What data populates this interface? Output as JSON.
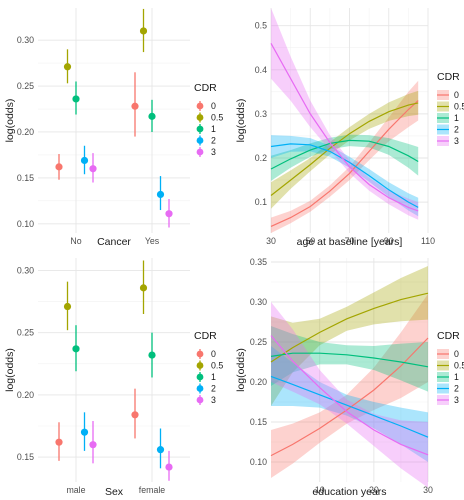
{
  "chart_data": [
    {
      "type": "scatter",
      "subtype": "point-range",
      "xlabel": "Cancer",
      "ylabel": "log(odds)",
      "categories": [
        "No",
        "Yes"
      ],
      "ylim": [
        0.09,
        0.335
      ],
      "yticks": [
        "0.10",
        "0.15",
        "0.20",
        "0.25",
        "0.30"
      ],
      "yticks_values": [
        0.1,
        0.15,
        0.2,
        0.25,
        0.3
      ],
      "legend_title": "CDR",
      "legend_position": "right",
      "grid": true,
      "series": [
        {
          "name": "0",
          "color": "#F8766D",
          "values": [
            0.162,
            0.228
          ],
          "lower": [
            0.148,
            0.195
          ],
          "upper": [
            0.176,
            0.265
          ]
        },
        {
          "name": "0.5",
          "color": "#A3A500",
          "values": [
            0.271,
            0.31
          ],
          "lower": [
            0.253,
            0.287
          ],
          "upper": [
            0.29,
            0.334
          ]
        },
        {
          "name": "1",
          "color": "#00BF7D",
          "values": [
            0.236,
            0.217
          ],
          "lower": [
            0.219,
            0.2
          ],
          "upper": [
            0.255,
            0.235
          ]
        },
        {
          "name": "2",
          "color": "#00B0F6",
          "values": [
            0.169,
            0.132
          ],
          "lower": [
            0.154,
            0.115
          ],
          "upper": [
            0.185,
            0.152
          ]
        },
        {
          "name": "3",
          "color": "#E76BF3",
          "values": [
            0.16,
            0.111
          ],
          "lower": [
            0.145,
            0.096
          ],
          "upper": [
            0.177,
            0.127
          ]
        }
      ]
    },
    {
      "type": "line",
      "subtype": "line-with-ribbon",
      "xlabel": "age at baseline [years]",
      "ylabel": "log(odds)",
      "xlim": [
        30,
        110
      ],
      "xticks": [
        "30",
        "50",
        "70",
        "90",
        "110"
      ],
      "xticks_values": [
        30,
        50,
        70,
        90,
        110
      ],
      "ylim": [
        0.03,
        0.54
      ],
      "yticks": [
        "0.1",
        "0.2",
        "0.3",
        "0.4",
        "0.5"
      ],
      "yticks_values": [
        0.1,
        0.2,
        0.3,
        0.4,
        0.5
      ],
      "legend_title": "CDR",
      "legend_position": "right",
      "grid": true,
      "x": [
        30,
        40,
        50,
        60,
        70,
        80,
        90,
        100,
        105
      ],
      "series": [
        {
          "name": "0",
          "color": "#F8766D",
          "values": [
            0.045,
            0.065,
            0.09,
            0.125,
            0.165,
            0.215,
            0.265,
            0.31,
            0.33
          ],
          "lower": [
            0.03,
            0.052,
            0.078,
            0.112,
            0.15,
            0.195,
            0.238,
            0.27,
            0.285
          ],
          "upper": [
            0.065,
            0.08,
            0.103,
            0.138,
            0.18,
            0.235,
            0.292,
            0.35,
            0.375
          ]
        },
        {
          "name": "0.5",
          "color": "#A3A500",
          "values": [
            0.115,
            0.15,
            0.185,
            0.222,
            0.255,
            0.283,
            0.305,
            0.32,
            0.325
          ],
          "lower": [
            0.085,
            0.13,
            0.17,
            0.208,
            0.24,
            0.266,
            0.284,
            0.295,
            0.298
          ],
          "upper": [
            0.145,
            0.172,
            0.2,
            0.236,
            0.27,
            0.3,
            0.326,
            0.345,
            0.352
          ]
        },
        {
          "name": "1",
          "color": "#00BF7D",
          "values": [
            0.175,
            0.198,
            0.218,
            0.233,
            0.24,
            0.238,
            0.226,
            0.205,
            0.192
          ],
          "lower": [
            0.148,
            0.178,
            0.203,
            0.22,
            0.227,
            0.224,
            0.207,
            0.178,
            0.16
          ],
          "upper": [
            0.205,
            0.218,
            0.233,
            0.246,
            0.253,
            0.252,
            0.245,
            0.232,
            0.225
          ]
        },
        {
          "name": "2",
          "color": "#00B0F6",
          "values": [
            0.226,
            0.232,
            0.23,
            0.215,
            0.19,
            0.16,
            0.128,
            0.1,
            0.088
          ],
          "lower": [
            0.2,
            0.214,
            0.215,
            0.203,
            0.178,
            0.146,
            0.112,
            0.081,
            0.068
          ],
          "upper": [
            0.252,
            0.25,
            0.245,
            0.228,
            0.203,
            0.175,
            0.145,
            0.12,
            0.11
          ]
        },
        {
          "name": "3",
          "color": "#E76BF3",
          "values": [
            0.46,
            0.38,
            0.3,
            0.235,
            0.18,
            0.14,
            0.11,
            0.088,
            0.08
          ],
          "lower": [
            0.38,
            0.33,
            0.27,
            0.218,
            0.166,
            0.126,
            0.095,
            0.07,
            0.06
          ],
          "upper": [
            0.54,
            0.43,
            0.33,
            0.252,
            0.195,
            0.155,
            0.126,
            0.108,
            0.1
          ]
        }
      ]
    },
    {
      "type": "scatter",
      "subtype": "point-range",
      "xlabel": "Sex",
      "ylabel": "log(odds)",
      "categories": [
        "male",
        "female"
      ],
      "ylim": [
        0.13,
        0.31
      ],
      "yticks": [
        "0.15",
        "0.20",
        "0.25",
        "0.30"
      ],
      "yticks_values": [
        0.15,
        0.2,
        0.25,
        0.3
      ],
      "legend_title": "CDR",
      "legend_position": "right",
      "grid": true,
      "series": [
        {
          "name": "0",
          "color": "#F8766D",
          "values": [
            0.162,
            0.184
          ],
          "lower": [
            0.147,
            0.165
          ],
          "upper": [
            0.178,
            0.205
          ]
        },
        {
          "name": "0.5",
          "color": "#A3A500",
          "values": [
            0.271,
            0.286
          ],
          "lower": [
            0.252,
            0.265
          ],
          "upper": [
            0.291,
            0.308
          ]
        },
        {
          "name": "1",
          "color": "#00BF7D",
          "values": [
            0.237,
            0.232
          ],
          "lower": [
            0.219,
            0.214
          ],
          "upper": [
            0.256,
            0.25
          ]
        },
        {
          "name": "2",
          "color": "#00B0F6",
          "values": [
            0.17,
            0.156
          ],
          "lower": [
            0.155,
            0.141
          ],
          "upper": [
            0.186,
            0.173
          ]
        },
        {
          "name": "3",
          "color": "#E76BF3",
          "values": [
            0.16,
            0.142
          ],
          "lower": [
            0.145,
            0.131
          ],
          "upper": [
            0.179,
            0.155
          ]
        }
      ]
    },
    {
      "type": "line",
      "subtype": "line-with-ribbon",
      "xlabel": "education years",
      "ylabel": "log(odds)",
      "xlim": [
        1,
        30
      ],
      "xticks": [
        "10",
        "20",
        "30"
      ],
      "xticks_values": [
        10,
        20,
        30
      ],
      "ylim": [
        0.075,
        0.355
      ],
      "yticks": [
        "0.10",
        "0.15",
        "0.20",
        "0.25",
        "0.30",
        "0.35"
      ],
      "yticks_values": [
        0.1,
        0.15,
        0.2,
        0.25,
        0.3,
        0.35
      ],
      "legend_title": "CDR",
      "legend_position": "right",
      "grid": true,
      "x": [
        1,
        5,
        10,
        15,
        20,
        25,
        30
      ],
      "series": [
        {
          "name": "0",
          "color": "#F8766D",
          "values": [
            0.108,
            0.122,
            0.142,
            0.165,
            0.19,
            0.22,
            0.255
          ],
          "lower": [
            0.08,
            0.098,
            0.124,
            0.148,
            0.165,
            0.18,
            0.2
          ],
          "upper": [
            0.14,
            0.148,
            0.162,
            0.184,
            0.218,
            0.262,
            0.31
          ]
        },
        {
          "name": "0.5",
          "color": "#A3A500",
          "values": [
            0.225,
            0.243,
            0.262,
            0.279,
            0.292,
            0.303,
            0.311
          ],
          "lower": [
            0.17,
            0.212,
            0.246,
            0.264,
            0.272,
            0.276,
            0.278
          ],
          "upper": [
            0.282,
            0.274,
            0.279,
            0.294,
            0.312,
            0.33,
            0.345
          ]
        },
        {
          "name": "1",
          "color": "#00BF7D",
          "values": [
            0.232,
            0.236,
            0.236,
            0.234,
            0.23,
            0.225,
            0.219
          ],
          "lower": [
            0.195,
            0.212,
            0.222,
            0.222,
            0.215,
            0.202,
            0.188
          ],
          "upper": [
            0.27,
            0.26,
            0.25,
            0.246,
            0.245,
            0.248,
            0.25
          ]
        },
        {
          "name": "2",
          "color": "#00B0F6",
          "values": [
            0.207,
            0.197,
            0.184,
            0.171,
            0.158,
            0.145,
            0.131
          ],
          "lower": [
            0.17,
            0.17,
            0.168,
            0.158,
            0.142,
            0.122,
            0.1
          ],
          "upper": [
            0.245,
            0.224,
            0.2,
            0.184,
            0.175,
            0.168,
            0.162
          ]
        },
        {
          "name": "3",
          "color": "#E76BF3",
          "values": [
            0.258,
            0.226,
            0.193,
            0.163,
            0.14,
            0.122,
            0.109
          ],
          "lower": [
            0.2,
            0.188,
            0.172,
            0.148,
            0.12,
            0.092,
            0.068
          ],
          "upper": [
            0.3,
            0.266,
            0.215,
            0.178,
            0.16,
            0.152,
            0.15
          ]
        }
      ]
    }
  ]
}
